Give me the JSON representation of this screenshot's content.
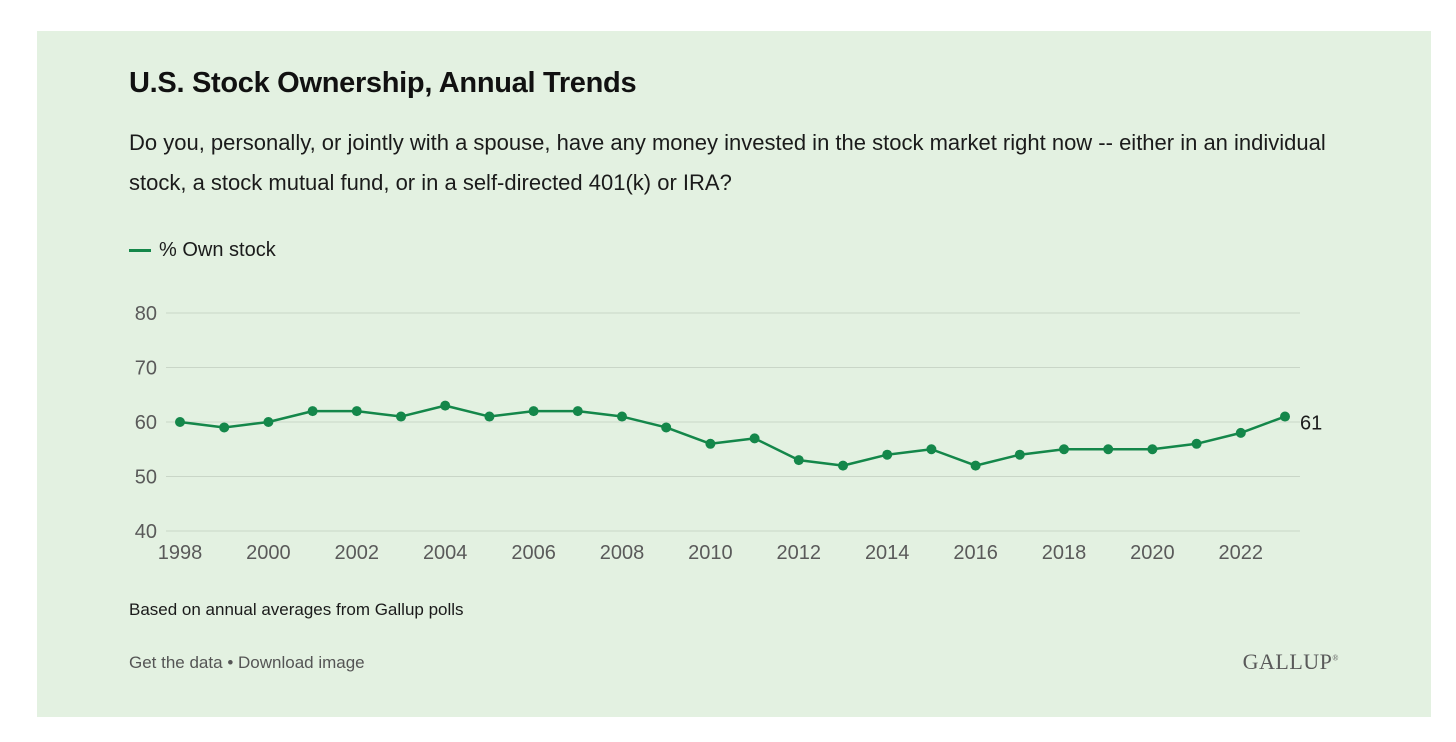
{
  "card": {
    "title": "U.S. Stock Ownership, Annual Trends",
    "subtitle": "Do you, personally, or jointly with a spouse, have any money invested in the stock market right now -- either in an individual stock, a stock mutual fund, or in a self-directed 401(k) or IRA?",
    "note": "Based on annual averages from Gallup polls",
    "footer": {
      "get_data": "Get the data",
      "separator": "•",
      "download": "Download image"
    },
    "logo": "GALLUP"
  },
  "colors": {
    "background": "#e3f1e1",
    "series": "#14874a",
    "grid": "#c9d6c7"
  },
  "chart_data": {
    "type": "line",
    "title": "U.S. Stock Ownership, Annual Trends",
    "xlabel": "",
    "ylabel": "",
    "ylim": [
      40,
      80
    ],
    "yticks": [
      40,
      50,
      60,
      70,
      80
    ],
    "xticks": [
      1998,
      2000,
      2002,
      2004,
      2006,
      2008,
      2010,
      2012,
      2014,
      2016,
      2018,
      2020,
      2022
    ],
    "grid": true,
    "legend": "top-left",
    "series": [
      {
        "name": "% Own stock",
        "x": [
          1998,
          1999,
          2000,
          2001,
          2002,
          2003,
          2004,
          2005,
          2006,
          2007,
          2008,
          2009,
          2010,
          2011,
          2012,
          2013,
          2014,
          2015,
          2016,
          2017,
          2018,
          2019,
          2020,
          2021,
          2022,
          2023
        ],
        "values": [
          60,
          59,
          60,
          62,
          62,
          61,
          63,
          61,
          62,
          62,
          61,
          59,
          56,
          57,
          53,
          52,
          54,
          55,
          52,
          54,
          55,
          55,
          55,
          56,
          58,
          61
        ]
      }
    ],
    "end_label": "61"
  }
}
